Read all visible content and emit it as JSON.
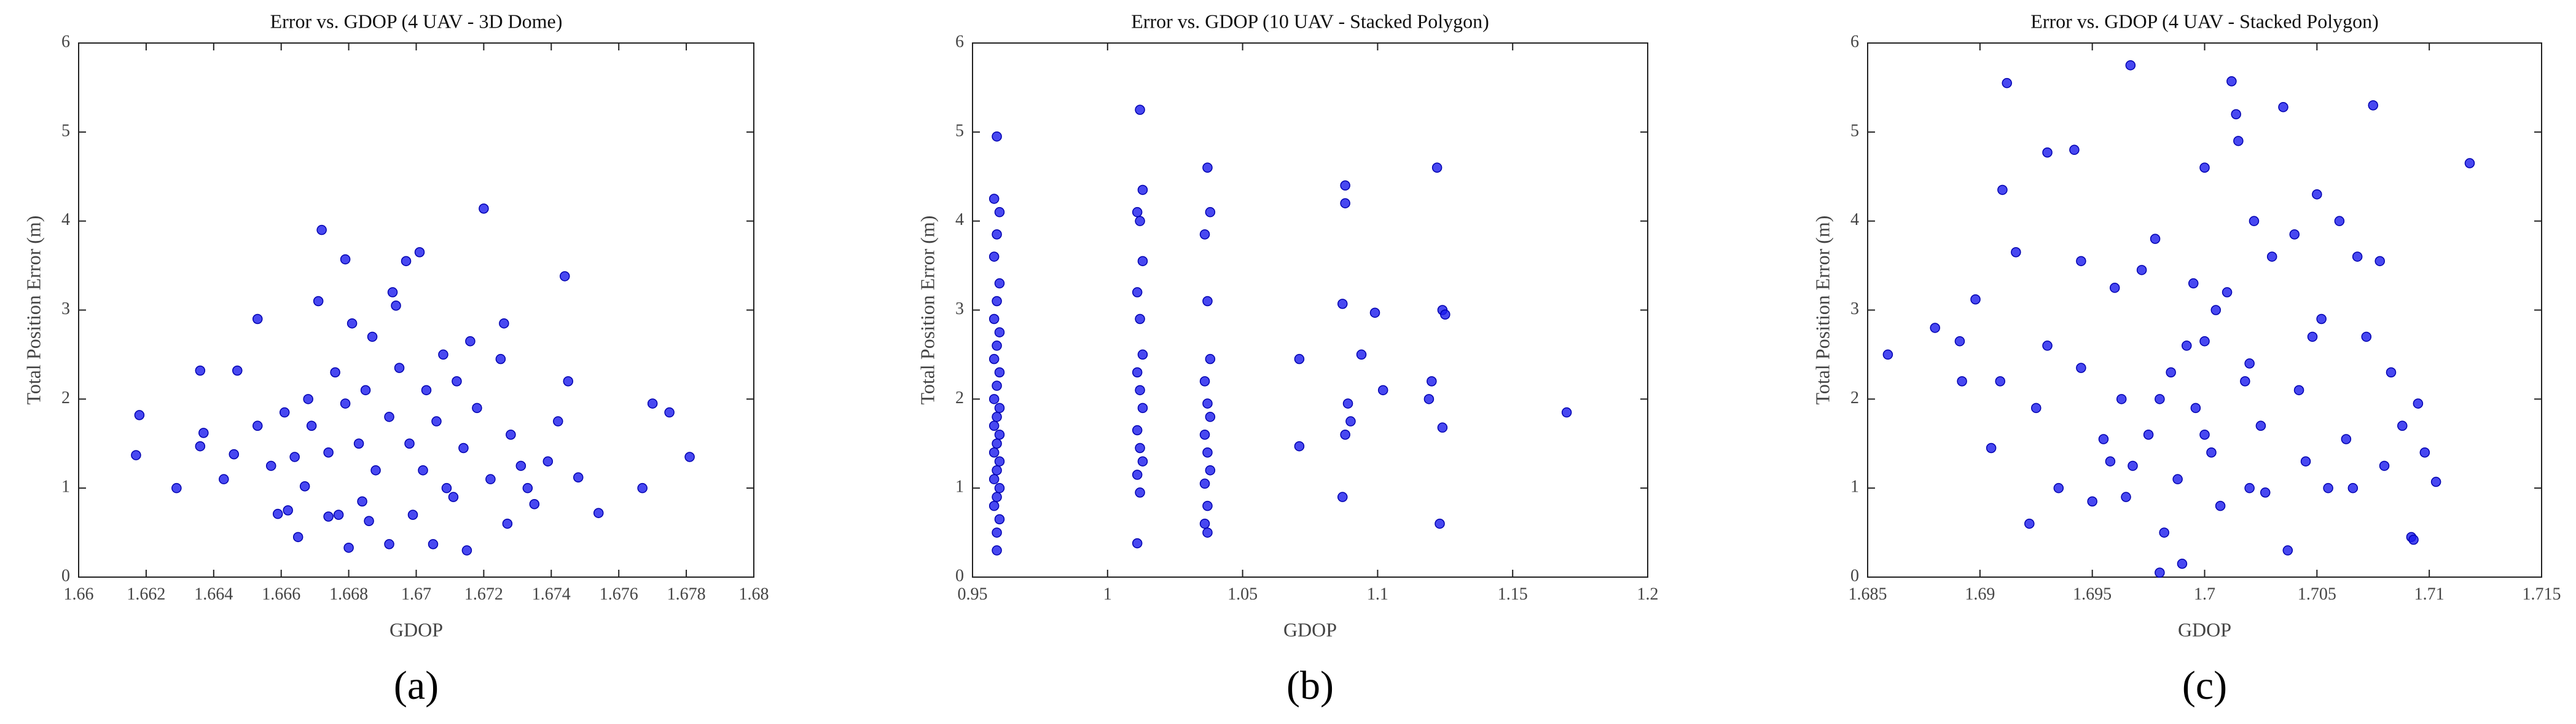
{
  "chart_data": [
    {
      "type": "scatter",
      "title": "Error vs. GDOP (4 UAV - 3D Dome)",
      "x_label": "GDOP",
      "y_label": "Total Position Error (m)",
      "panel_label": "(a)",
      "color": "#1a1aee",
      "x": [
        1.6617,
        1.6618,
        1.6629,
        1.6636,
        1.6636,
        1.6637,
        1.6643,
        1.6647,
        1.6646,
        1.6653,
        1.6653,
        1.6657,
        1.6672,
        1.6679,
        1.6671,
        1.6676,
        1.6681,
        1.6687,
        1.6693,
        1.6694,
        1.6697,
        1.6701,
        1.672,
        1.6744,
        1.6726,
        1.6745,
        1.6775,
        1.6781,
        1.677,
        1.6767,
        1.6754,
        1.6748,
        1.6735,
        1.6727,
        1.6715,
        1.6705,
        1.6692,
        1.668,
        1.6665,
        1.6659,
        1.6662,
        1.6667,
        1.6674,
        1.6677,
        1.6684,
        1.6686,
        1.6699,
        1.6711,
        1.6722,
        1.6731,
        1.6739,
        1.6742,
        1.6728,
        1.6718,
        1.6712,
        1.6708,
        1.6703,
        1.6698,
        1.6692,
        1.6688,
        1.6683,
        1.6679,
        1.6674,
        1.6669,
        1.6664,
        1.6661,
        1.6668,
        1.6685,
        1.6695,
        1.6706,
        1.6714,
        1.6725,
        1.6733,
        1.6702,
        1.6716,
        1.6709
      ],
      "y": [
        1.37,
        1.82,
        1.0,
        2.32,
        1.47,
        1.62,
        1.1,
        2.32,
        1.38,
        2.9,
        1.7,
        1.25,
        3.9,
        3.57,
        3.1,
        2.3,
        2.85,
        2.7,
        3.2,
        3.05,
        3.55,
        3.65,
        4.14,
        3.38,
        2.85,
        2.2,
        1.85,
        1.35,
        1.95,
        1.0,
        0.72,
        1.12,
        0.82,
        0.6,
        0.3,
        0.37,
        0.37,
        0.33,
        0.45,
        0.71,
        0.75,
        1.02,
        0.68,
        0.7,
        0.85,
        0.63,
        0.7,
        0.9,
        1.1,
        1.25,
        1.3,
        1.75,
        1.6,
        1.9,
        2.2,
        2.5,
        2.1,
        1.5,
        1.8,
        1.2,
        1.5,
        1.95,
        1.4,
        1.7,
        1.35,
        1.85,
        2.0,
        2.1,
        2.35,
        1.75,
        1.45,
        2.45,
        1.0,
        1.2,
        2.65,
        1.0
      ],
      "xlim": [
        1.66,
        1.68
      ],
      "xticks": [
        1.66,
        1.662,
        1.664,
        1.666,
        1.668,
        1.67,
        1.672,
        1.674,
        1.676,
        1.678,
        1.68
      ],
      "ylim": [
        0,
        6
      ],
      "yticks": [
        0,
        1,
        2,
        3,
        4,
        5,
        6
      ]
    },
    {
      "type": "scatter",
      "title": "Error vs. GDOP (10 UAV - Stacked Polygon)",
      "x_label": "GDOP",
      "y_label": "Total Position Error (m)",
      "panel_label": "(b)",
      "color": "#1a1aee",
      "x": [
        0.959,
        0.958,
        0.96,
        0.959,
        0.958,
        0.96,
        0.959,
        0.958,
        0.96,
        0.959,
        0.958,
        0.96,
        0.959,
        0.958,
        0.96,
        0.959,
        0.958,
        0.96,
        0.959,
        0.958,
        0.96,
        0.959,
        0.958,
        0.96,
        0.959,
        0.958,
        0.96,
        0.959,
        0.959,
        1.012,
        1.013,
        1.011,
        1.012,
        1.013,
        1.011,
        1.012,
        1.013,
        1.011,
        1.012,
        1.013,
        1.011,
        1.012,
        1.013,
        1.011,
        1.012,
        1.011,
        1.037,
        1.038,
        1.036,
        1.037,
        1.038,
        1.036,
        1.037,
        1.038,
        1.036,
        1.037,
        1.038,
        1.036,
        1.037,
        1.036,
        1.037,
        1.071,
        1.071,
        1.088,
        1.088,
        1.087,
        1.089,
        1.088,
        1.09,
        1.087,
        1.094,
        1.099,
        1.102,
        1.12,
        1.119,
        1.122,
        1.124,
        1.125,
        1.124,
        1.123,
        1.17
      ],
      "y": [
        4.95,
        4.25,
        4.1,
        3.85,
        3.6,
        3.3,
        3.1,
        2.9,
        2.75,
        2.6,
        2.45,
        2.3,
        2.15,
        2.0,
        1.9,
        1.8,
        1.7,
        1.6,
        1.5,
        1.4,
        1.3,
        1.2,
        1.1,
        1.0,
        0.9,
        0.8,
        0.65,
        0.5,
        0.3,
        5.25,
        4.35,
        4.1,
        4.0,
        3.55,
        3.2,
        2.9,
        2.5,
        2.3,
        2.1,
        1.9,
        1.65,
        1.45,
        1.3,
        1.15,
        0.95,
        0.38,
        4.6,
        4.1,
        3.85,
        3.1,
        2.45,
        2.2,
        1.95,
        1.8,
        1.6,
        1.4,
        1.2,
        1.05,
        0.8,
        0.6,
        0.5,
        2.45,
        1.47,
        4.4,
        4.2,
        3.07,
        1.95,
        1.6,
        1.75,
        0.9,
        2.5,
        2.97,
        2.1,
        2.2,
        2.0,
        4.6,
        3.0,
        2.95,
        1.68,
        0.6,
        1.85
      ],
      "xlim": [
        0.95,
        1.2
      ],
      "xticks": [
        0.95,
        1,
        1.05,
        1.1,
        1.15,
        1.2
      ],
      "ylim": [
        0,
        6
      ],
      "yticks": [
        0,
        1,
        2,
        3,
        4,
        5,
        6
      ]
    },
    {
      "type": "scatter",
      "title": "Error vs. GDOP (4 UAV - Stacked Polygon)",
      "x_label": "GDOP",
      "y_label": "Total Position Error (m)",
      "panel_label": "(c)",
      "color": "#1a1aee",
      "x": [
        1.6859,
        1.688,
        1.6891,
        1.6892,
        1.6898,
        1.6905,
        1.6909,
        1.691,
        1.6912,
        1.6916,
        1.6922,
        1.6925,
        1.693,
        1.693,
        1.6935,
        1.6942,
        1.6945,
        1.6945,
        1.695,
        1.6955,
        1.696,
        1.6967,
        1.6963,
        1.6968,
        1.6972,
        1.6975,
        1.6978,
        1.698,
        1.6982,
        1.6985,
        1.6988,
        1.699,
        1.6995,
        1.6996,
        1.7,
        1.7,
        1.7003,
        1.7007,
        1.701,
        1.7012,
        1.7014,
        1.7015,
        1.7018,
        1.702,
        1.7022,
        1.7025,
        1.703,
        1.7035,
        1.7037,
        1.704,
        1.7042,
        1.7045,
        1.705,
        1.7052,
        1.7055,
        1.706,
        1.7063,
        1.7068,
        1.7072,
        1.7075,
        1.7078,
        1.708,
        1.7083,
        1.7088,
        1.7092,
        1.7093,
        1.7095,
        1.7098,
        1.7103,
        1.7118,
        1.7,
        1.6965,
        1.698,
        1.702,
        1.7005,
        1.6958,
        1.7066,
        1.7048,
        1.7027,
        1.6992
      ],
      "y": [
        2.5,
        2.8,
        2.65,
        2.2,
        3.12,
        1.45,
        2.2,
        4.35,
        5.55,
        3.65,
        0.6,
        1.9,
        4.77,
        2.6,
        1.0,
        4.8,
        3.55,
        2.35,
        0.85,
        1.55,
        3.25,
        5.75,
        2.0,
        1.25,
        3.45,
        1.6,
        3.8,
        0.05,
        0.5,
        2.3,
        1.1,
        0.15,
        3.3,
        1.9,
        4.6,
        2.65,
        1.4,
        0.8,
        3.2,
        5.57,
        5.2,
        4.9,
        2.2,
        1.0,
        4.0,
        1.7,
        3.6,
        5.28,
        0.3,
        3.85,
        2.1,
        1.3,
        4.3,
        2.9,
        1.0,
        4.0,
        1.55,
        3.6,
        2.7,
        5.3,
        3.55,
        1.25,
        2.3,
        1.7,
        0.45,
        0.42,
        1.95,
        1.4,
        1.07,
        4.65,
        1.6,
        0.9,
        2.0,
        2.4,
        3.0,
        1.3,
        1.0,
        2.7,
        0.95,
        2.6
      ],
      "xlim": [
        1.685,
        1.715
      ],
      "xticks": [
        1.685,
        1.69,
        1.695,
        1.7,
        1.705,
        1.71,
        1.715
      ],
      "ylim": [
        0,
        6
      ],
      "yticks": [
        0,
        1,
        2,
        3,
        4,
        5,
        6
      ]
    }
  ]
}
